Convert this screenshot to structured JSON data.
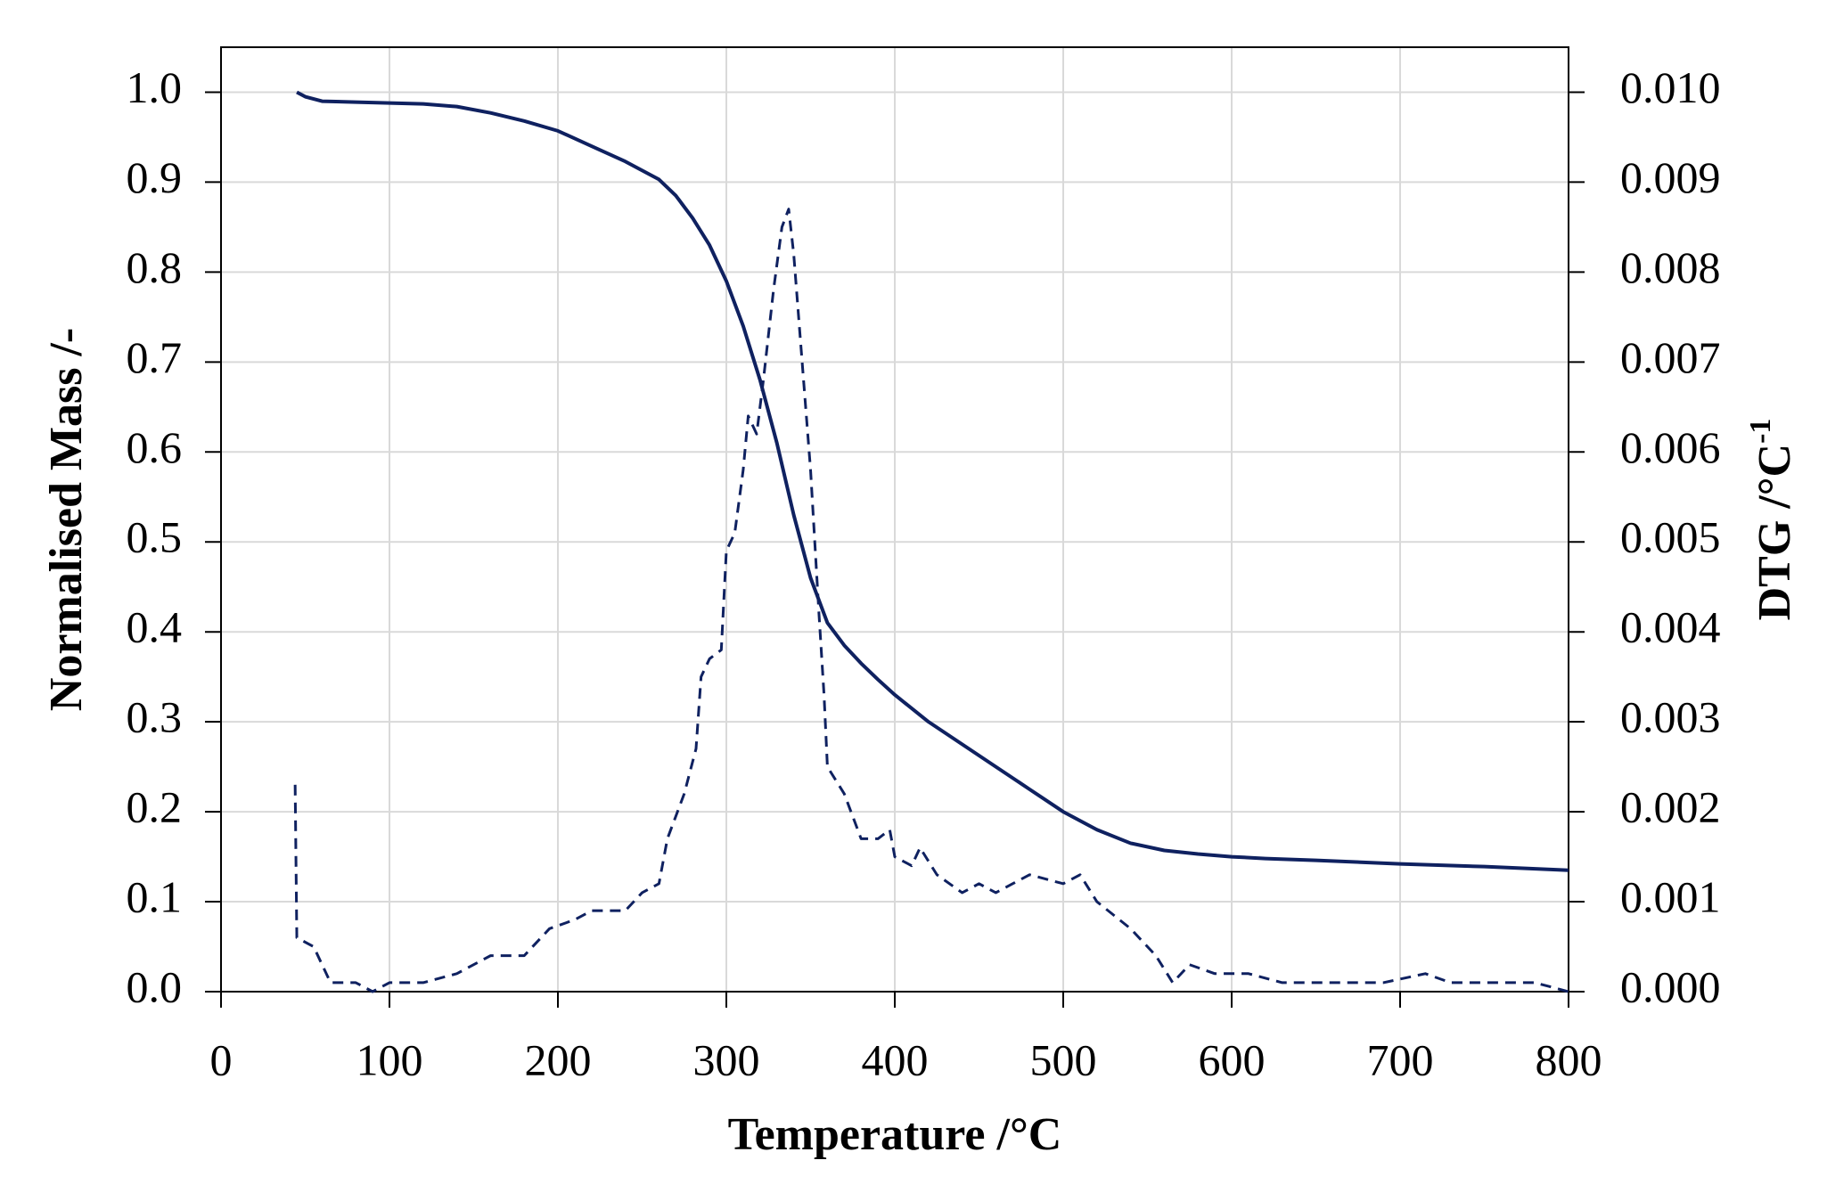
{
  "chart_data": {
    "type": "line",
    "xlabel": "Temperature /°C",
    "ylabel": "Normalised Mass /-",
    "y2label": "DTG  /°C",
    "y2label_sup": "-1",
    "xlim": [
      0,
      800
    ],
    "xticks": [
      0,
      100,
      200,
      300,
      400,
      500,
      600,
      700,
      800
    ],
    "ylim": [
      0,
      1.05
    ],
    "yticks": [
      {
        "value": 0,
        "label": "0.0"
      },
      0.1,
      0.2,
      0.3,
      0.4,
      0.5,
      0.6,
      0.7,
      0.8,
      0.9,
      {
        "value": 1,
        "label": "1.0"
      }
    ],
    "y2lim": [
      0,
      0.0105
    ],
    "y2ticks": [
      {
        "value": 0,
        "label": "0.000"
      },
      {
        "value": 0.001,
        "label": "0.001"
      },
      {
        "value": 0.002,
        "label": "0.002"
      },
      {
        "value": 0.003,
        "label": "0.003"
      },
      {
        "value": 0.004,
        "label": "0.004"
      },
      {
        "value": 0.005,
        "label": "0.005"
      },
      {
        "value": 0.006,
        "label": "0.006"
      },
      {
        "value": 0.007,
        "label": "0.007"
      },
      {
        "value": 0.008,
        "label": "0.008"
      },
      {
        "value": 0.009,
        "label": "0.009"
      },
      {
        "value": 0.01,
        "label": "0.010"
      }
    ],
    "grid": true,
    "series": [
      {
        "color": "#0f2160",
        "dash": false,
        "x": [
          45,
          50,
          60,
          80,
          100,
          120,
          140,
          160,
          180,
          200,
          220,
          240,
          260,
          270,
          280,
          290,
          300,
          310,
          320,
          330,
          340,
          350,
          360,
          370,
          380,
          390,
          400,
          420,
          440,
          460,
          480,
          500,
          520,
          540,
          560,
          580,
          600,
          620,
          650,
          700,
          750,
          800
        ],
        "values": [
          1.0,
          0.995,
          0.99,
          0.989,
          0.988,
          0.987,
          0.984,
          0.977,
          0.968,
          0.957,
          0.94,
          0.923,
          0.903,
          0.885,
          0.86,
          0.83,
          0.79,
          0.74,
          0.68,
          0.61,
          0.53,
          0.46,
          0.41,
          0.385,
          0.365,
          0.347,
          0.33,
          0.3,
          0.275,
          0.25,
          0.225,
          0.2,
          0.18,
          0.165,
          0.157,
          0.153,
          0.15,
          0.148,
          0.146,
          0.142,
          0.139,
          0.135
        ]
      },
      {
        "color": "#0f2160",
        "dash": true,
        "axis": "y2",
        "x": [
          44,
          45,
          55,
          65,
          80,
          90,
          100,
          120,
          140,
          160,
          180,
          195,
          210,
          220,
          240,
          250,
          260,
          265,
          275,
          282,
          285,
          290,
          297,
          300,
          305,
          310,
          313,
          318,
          322,
          328,
          333,
          337,
          340,
          345,
          350,
          355,
          358,
          360,
          370,
          380,
          390,
          397,
          400,
          410,
          415,
          425,
          440,
          450,
          460,
          470,
          480,
          500,
          510,
          520,
          540,
          555,
          565,
          575,
          590,
          610,
          630,
          650,
          670,
          690,
          715,
          730,
          760,
          780,
          800
        ],
        "values": [
          0.0023,
          0.0006,
          0.0005,
          0.0001,
          0.0001,
          0,
          0.0001,
          0.0001,
          0.0002,
          0.0004,
          0.0004,
          0.0007,
          0.0008,
          0.0009,
          0.0009,
          0.0011,
          0.0012,
          0.0017,
          0.0022,
          0.0027,
          0.0035,
          0.0037,
          0.0038,
          0.0049,
          0.0051,
          0.0058,
          0.0064,
          0.0062,
          0.0068,
          0.0078,
          0.0085,
          0.0087,
          0.0082,
          0.007,
          0.0058,
          0.0042,
          0.0033,
          0.0025,
          0.0022,
          0.0017,
          0.0017,
          0.0018,
          0.0015,
          0.0014,
          0.0016,
          0.0013,
          0.0011,
          0.0012,
          0.0011,
          0.0012,
          0.0013,
          0.0012,
          0.0013,
          0.001,
          0.0007,
          0.0004,
          0.0001,
          0.0003,
          0.0002,
          0.0002,
          0.0001,
          0.0001,
          0.0001,
          0.0001,
          0.0002,
          0.0001,
          0.0001,
          0.0001,
          0
        ]
      }
    ]
  }
}
